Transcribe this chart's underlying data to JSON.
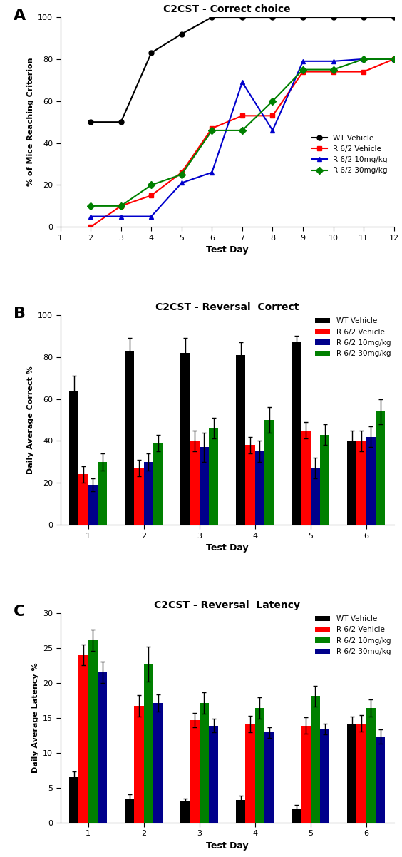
{
  "panel_A": {
    "title": "C2CST - Correct choice",
    "xlabel": "Test Day",
    "ylabel": "% of Mice Reaching Criterion",
    "xlim": [
      1,
      12
    ],
    "ylim": [
      0,
      100
    ],
    "xticks": [
      1,
      2,
      3,
      4,
      5,
      6,
      7,
      8,
      9,
      10,
      11,
      12
    ],
    "yticks": [
      0,
      20,
      40,
      60,
      80,
      100
    ],
    "series": {
      "WT Vehicle": {
        "x": [
          2,
          3,
          4,
          5,
          6,
          7,
          8,
          9,
          10,
          11,
          12
        ],
        "y": [
          50,
          50,
          83,
          92,
          100,
          100,
          100,
          100,
          100,
          100,
          100
        ],
        "color": "#000000",
        "marker": "o",
        "linestyle": "-"
      },
      "R 6/2 Vehicle": {
        "x": [
          2,
          3,
          4,
          5,
          6,
          7,
          8,
          9,
          10,
          11,
          12
        ],
        "y": [
          0,
          10,
          15,
          26,
          47,
          53,
          53,
          74,
          74,
          74,
          80
        ],
        "color": "#ff0000",
        "marker": "s",
        "linestyle": "-"
      },
      "R 6/2 10mg/kg": {
        "x": [
          2,
          3,
          4,
          5,
          6,
          7,
          8,
          9,
          10,
          11,
          12
        ],
        "y": [
          5,
          5,
          5,
          21,
          26,
          69,
          46,
          79,
          79,
          80,
          80
        ],
        "color": "#0000cc",
        "marker": "^",
        "linestyle": "-"
      },
      "R 6/2 30mg/kg": {
        "x": [
          2,
          3,
          4,
          5,
          6,
          7,
          8,
          9,
          10,
          11,
          12
        ],
        "y": [
          10,
          10,
          20,
          25,
          46,
          46,
          60,
          75,
          75,
          80,
          80
        ],
        "color": "#008000",
        "marker": "D",
        "linestyle": "-"
      }
    }
  },
  "panel_B": {
    "title": "C2CST - Reversal  Correct",
    "xlabel": "Test Day",
    "ylabel": "Daily Average Correct %",
    "xlim": [
      0.5,
      6.5
    ],
    "ylim": [
      0,
      100
    ],
    "xticks": [
      1,
      2,
      3,
      4,
      5,
      6
    ],
    "yticks": [
      0,
      20,
      40,
      60,
      80,
      100
    ],
    "groups": [
      "WT Vehicle",
      "R 6/2 Vehicle",
      "R 6/2 10mg/kg",
      "R 6/2 30mg/kg"
    ],
    "colors": [
      "#000000",
      "#ff0000",
      "#00008b",
      "#008000"
    ],
    "bar_width": 0.17,
    "days": [
      1,
      2,
      3,
      4,
      5,
      6
    ],
    "means": {
      "WT Vehicle": [
        64,
        83,
        82,
        81,
        87,
        40
      ],
      "R 6/2 Vehicle": [
        24,
        27,
        40,
        38,
        45,
        40
      ],
      "R 6/2 10mg/kg": [
        19,
        30,
        37,
        35,
        27,
        42
      ],
      "R 6/2 30mg/kg": [
        30,
        39,
        46,
        50,
        43,
        54
      ]
    },
    "errors": {
      "WT Vehicle": [
        7,
        6,
        7,
        6,
        3,
        5
      ],
      "R 6/2 Vehicle": [
        4,
        4,
        5,
        4,
        4,
        5
      ],
      "R 6/2 10mg/kg": [
        3,
        4,
        7,
        5,
        5,
        5
      ],
      "R 6/2 30mg/kg": [
        4,
        4,
        5,
        6,
        5,
        6
      ]
    }
  },
  "panel_C": {
    "title": "C2CST - Reversal  Latency",
    "xlabel": "Test Day",
    "ylabel": "Daily Average Latency %",
    "xlim": [
      0.5,
      6.5
    ],
    "ylim": [
      0,
      30
    ],
    "xticks": [
      1,
      2,
      3,
      4,
      5,
      6
    ],
    "yticks": [
      0,
      5,
      10,
      15,
      20,
      25,
      30
    ],
    "groups": [
      "WT Vehicle",
      "R 6/2 Vehicle",
      "R 6/2 10mg/kg",
      "R 6/2 30mg/kg"
    ],
    "colors": [
      "#000000",
      "#ff0000",
      "#008000",
      "#00008b"
    ],
    "bar_width": 0.17,
    "days": [
      1,
      2,
      3,
      4,
      5,
      6
    ],
    "means": {
      "WT Vehicle": [
        6.5,
        3.5,
        3.0,
        3.3,
        2.0,
        14.2
      ],
      "R 6/2 Vehicle": [
        24.0,
        16.7,
        14.7,
        14.1,
        13.9,
        14.2
      ],
      "R 6/2 10mg/kg": [
        26.1,
        22.7,
        17.1,
        16.4,
        18.1,
        16.4
      ],
      "R 6/2 30mg/kg": [
        21.5,
        17.1,
        13.9,
        12.9,
        13.4,
        12.3
      ]
    },
    "errors": {
      "WT Vehicle": [
        0.8,
        0.6,
        0.5,
        0.6,
        0.5,
        1.0
      ],
      "R 6/2 Vehicle": [
        1.5,
        1.5,
        1.0,
        1.2,
        1.2,
        1.2
      ],
      "R 6/2 10mg/kg": [
        1.5,
        2.5,
        1.5,
        1.5,
        1.5,
        1.2
      ],
      "R 6/2 30mg/kg": [
        1.5,
        1.2,
        1.0,
        0.8,
        0.8,
        1.0
      ]
    }
  },
  "bg_color": "#ffffff"
}
